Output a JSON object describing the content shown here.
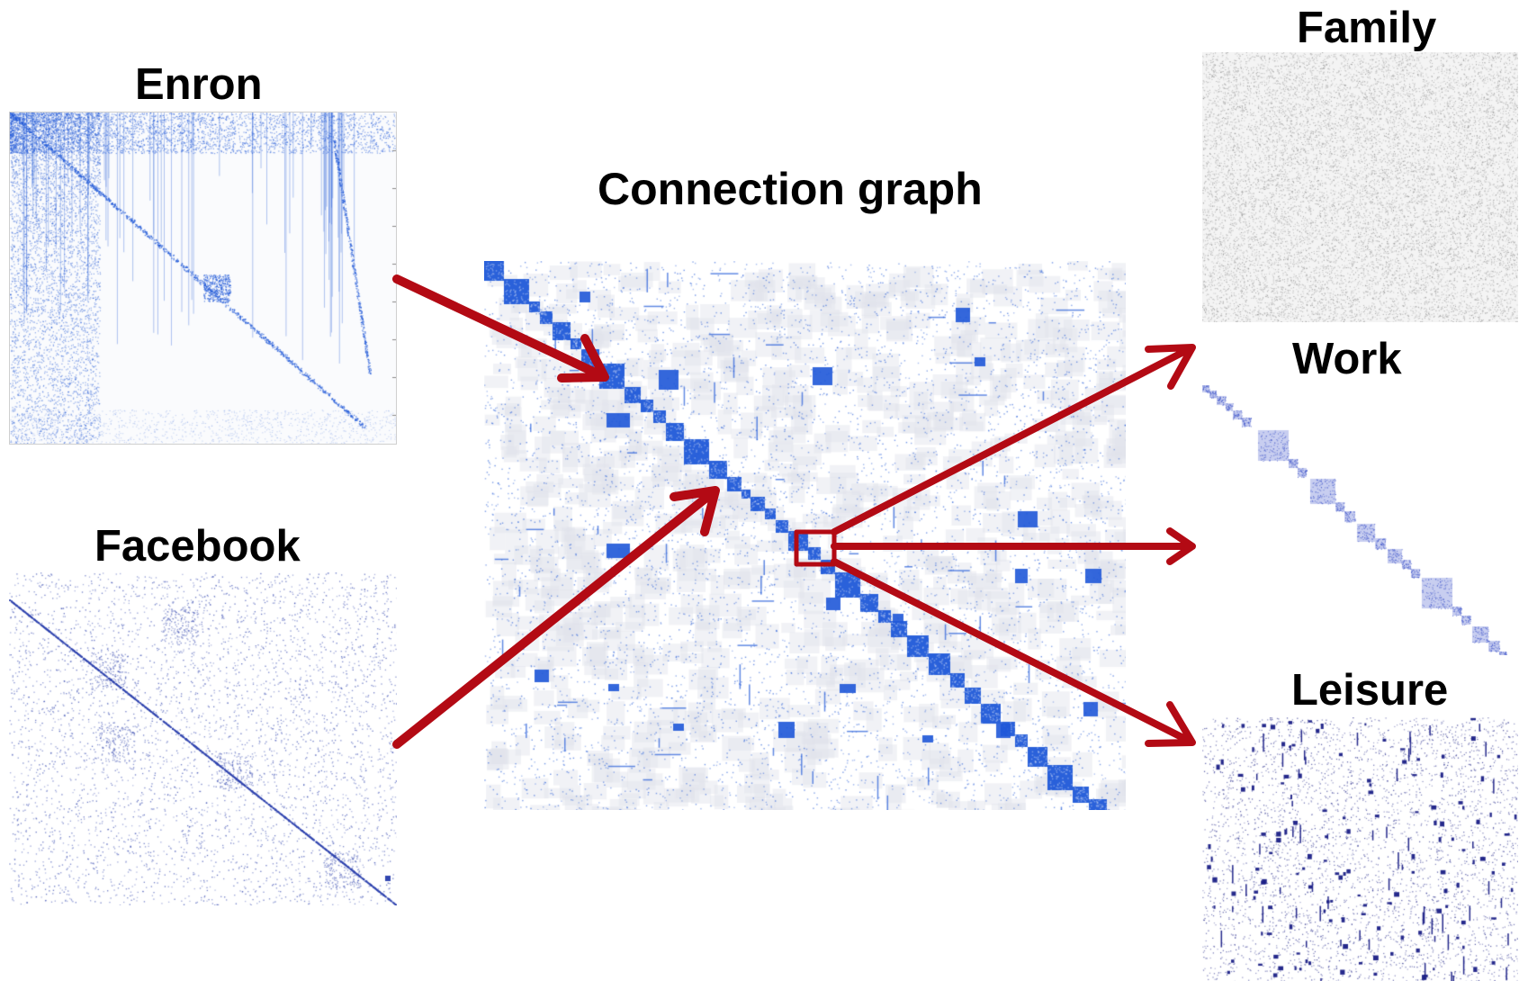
{
  "title": "Connection graph",
  "colors": {
    "matrix_blue": "#1f58d8",
    "facebook_blue": "#3246b0",
    "family_gray": "#8a8a8a",
    "leisure_navy": "#1a1f86",
    "arrow_red": "#b30a14"
  },
  "panels": {
    "enron": {
      "label": "Enron"
    },
    "facebook": {
      "label": "Facebook"
    },
    "connection": {
      "label": "Connection graph"
    },
    "family": {
      "label": "Family"
    },
    "work": {
      "label": "Work"
    },
    "leisure": {
      "label": "Leisure"
    }
  },
  "flow": [
    {
      "from": "Enron",
      "to": "Connection graph"
    },
    {
      "from": "Facebook",
      "to": "Connection graph"
    },
    {
      "from": "Connection graph",
      "to": "Family"
    },
    {
      "from": "Connection graph",
      "to": "Work"
    },
    {
      "from": "Connection graph",
      "to": "Leisure"
    }
  ]
}
